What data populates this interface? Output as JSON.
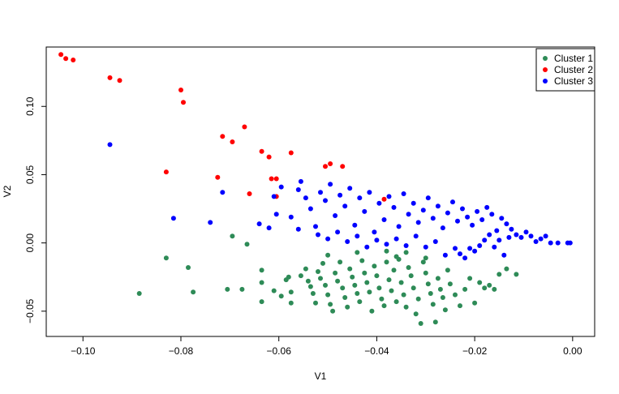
{
  "chart_data": {
    "type": "scatter",
    "title": "",
    "xlabel": "V1",
    "ylabel": "V2",
    "xlim": [
      -0.1075,
      0.0045
    ],
    "ylim": [
      -0.0685,
      0.1435
    ],
    "x_ticks": [
      -0.1,
      -0.08,
      -0.06,
      -0.04,
      -0.02,
      0.0
    ],
    "x_tick_labels": [
      "−0.10",
      "−0.08",
      "−0.06",
      "−0.04",
      "−0.02",
      "0.00"
    ],
    "y_ticks": [
      -0.05,
      0.0,
      0.05,
      0.1
    ],
    "y_tick_labels": [
      "−0.05",
      "0.00",
      "0.05",
      "0.10"
    ],
    "grid": false,
    "legend_position": "top-right",
    "series": [
      {
        "name": "Cluster 1",
        "color": "#2E8B57",
        "points": [
          [
            -0.0885,
            -0.037
          ],
          [
            -0.083,
            -0.011
          ],
          [
            -0.0785,
            -0.018
          ],
          [
            -0.0775,
            -0.036
          ],
          [
            -0.0705,
            -0.034
          ],
          [
            -0.0695,
            0.005
          ],
          [
            -0.0675,
            -0.034
          ],
          [
            -0.0665,
            -0.001
          ],
          [
            -0.0635,
            -0.02
          ],
          [
            -0.0635,
            -0.029
          ],
          [
            -0.0635,
            -0.043
          ],
          [
            -0.061,
            -0.035
          ],
          [
            -0.0595,
            -0.039
          ],
          [
            -0.0585,
            -0.027
          ],
          [
            -0.058,
            -0.025
          ],
          [
            -0.0575,
            -0.036
          ],
          [
            -0.0575,
            -0.044
          ],
          [
            -0.0555,
            -0.024
          ],
          [
            -0.0545,
            -0.019
          ],
          [
            -0.054,
            -0.028
          ],
          [
            -0.0535,
            -0.032
          ],
          [
            -0.053,
            -0.037
          ],
          [
            -0.0525,
            -0.044
          ],
          [
            -0.052,
            -0.021
          ],
          [
            -0.0515,
            -0.026
          ],
          [
            -0.051,
            -0.015
          ],
          [
            -0.0505,
            -0.031
          ],
          [
            -0.05,
            -0.038
          ],
          [
            -0.0495,
            -0.045
          ],
          [
            -0.049,
            -0.05
          ],
          [
            -0.0485,
            -0.022
          ],
          [
            -0.048,
            -0.028
          ],
          [
            -0.0475,
            -0.014
          ],
          [
            -0.047,
            -0.033
          ],
          [
            -0.0465,
            -0.04
          ],
          [
            -0.046,
            -0.047
          ],
          [
            -0.0455,
            -0.019
          ],
          [
            -0.045,
            -0.025
          ],
          [
            -0.0445,
            -0.031
          ],
          [
            -0.044,
            -0.037
          ],
          [
            -0.0435,
            -0.043
          ],
          [
            -0.043,
            -0.013
          ],
          [
            -0.0425,
            -0.022
          ],
          [
            -0.042,
            -0.029
          ],
          [
            -0.0415,
            -0.036
          ],
          [
            -0.041,
            -0.05
          ],
          [
            -0.0405,
            -0.017
          ],
          [
            -0.04,
            -0.024
          ],
          [
            -0.0395,
            -0.033
          ],
          [
            -0.039,
            -0.041
          ],
          [
            -0.0385,
            -0.046
          ],
          [
            -0.038,
            -0.014
          ],
          [
            -0.0375,
            -0.027
          ],
          [
            -0.037,
            -0.035
          ],
          [
            -0.0365,
            -0.02
          ],
          [
            -0.036,
            -0.043
          ],
          [
            -0.0355,
            -0.012
          ],
          [
            -0.035,
            -0.029
          ],
          [
            -0.0345,
            -0.038
          ],
          [
            -0.034,
            -0.047
          ],
          [
            -0.0335,
            -0.018
          ],
          [
            -0.033,
            -0.024
          ],
          [
            -0.0325,
            -0.033
          ],
          [
            -0.032,
            -0.052
          ],
          [
            -0.0315,
            -0.041
          ],
          [
            -0.031,
            -0.059
          ],
          [
            -0.0305,
            -0.014
          ],
          [
            -0.03,
            -0.022
          ],
          [
            -0.0295,
            -0.03
          ],
          [
            -0.029,
            -0.037
          ],
          [
            -0.0285,
            -0.045
          ],
          [
            -0.028,
            -0.058
          ],
          [
            -0.0275,
            -0.026
          ],
          [
            -0.027,
            -0.034
          ],
          [
            -0.0265,
            -0.04
          ],
          [
            -0.026,
            -0.049
          ],
          [
            -0.0255,
            -0.02
          ],
          [
            -0.025,
            -0.03
          ],
          [
            -0.024,
            -0.038
          ],
          [
            -0.023,
            -0.046
          ],
          [
            -0.022,
            -0.034
          ],
          [
            -0.021,
            -0.026
          ],
          [
            -0.02,
            -0.044
          ],
          [
            -0.019,
            -0.029
          ],
          [
            -0.018,
            -0.033
          ],
          [
            -0.017,
            -0.031
          ],
          [
            -0.016,
            -0.034
          ],
          [
            -0.015,
            -0.023
          ],
          [
            -0.0135,
            -0.019
          ],
          [
            -0.0115,
            -0.023
          ],
          [
            -0.038,
            -0.006
          ],
          [
            -0.036,
            -0.01
          ],
          [
            -0.034,
            -0.007
          ],
          [
            -0.03,
            -0.011
          ],
          [
            -0.05,
            -0.009
          ],
          [
            -0.044,
            -0.007
          ]
        ]
      },
      {
        "name": "Cluster 2",
        "color": "#FF0000",
        "points": [
          [
            -0.1045,
            0.138
          ],
          [
            -0.1035,
            0.135
          ],
          [
            -0.102,
            0.134
          ],
          [
            -0.0945,
            0.121
          ],
          [
            -0.0925,
            0.119
          ],
          [
            -0.08,
            0.112
          ],
          [
            -0.0795,
            0.103
          ],
          [
            -0.0715,
            0.078
          ],
          [
            -0.0695,
            0.074
          ],
          [
            -0.067,
            0.085
          ],
          [
            -0.0635,
            0.067
          ],
          [
            -0.062,
            0.063
          ],
          [
            -0.0575,
            0.066
          ],
          [
            -0.0605,
            0.047
          ],
          [
            -0.0615,
            0.047
          ],
          [
            -0.0605,
            0.034
          ],
          [
            -0.0505,
            0.056
          ],
          [
            -0.0495,
            0.058
          ],
          [
            -0.047,
            0.056
          ],
          [
            -0.0725,
            0.048
          ],
          [
            -0.066,
            0.036
          ],
          [
            -0.083,
            0.052
          ],
          [
            -0.0385,
            0.032
          ]
        ]
      },
      {
        "name": "Cluster 3",
        "color": "#0000FF",
        "points": [
          [
            -0.0945,
            0.072
          ],
          [
            -0.0815,
            0.018
          ],
          [
            -0.074,
            0.015
          ],
          [
            -0.0715,
            0.037
          ],
          [
            -0.061,
            0.034
          ],
          [
            -0.0605,
            0.021
          ],
          [
            -0.0595,
            0.041
          ],
          [
            -0.0575,
            0.019
          ],
          [
            -0.056,
            0.039
          ],
          [
            -0.0555,
            0.045
          ],
          [
            -0.0545,
            0.033
          ],
          [
            -0.0535,
            0.025
          ],
          [
            -0.0525,
            0.012
          ],
          [
            -0.0515,
            0.037
          ],
          [
            -0.0505,
            0.031
          ],
          [
            -0.0495,
            0.043
          ],
          [
            -0.0485,
            0.02
          ],
          [
            -0.0475,
            0.035
          ],
          [
            -0.0465,
            0.027
          ],
          [
            -0.0455,
            0.04
          ],
          [
            -0.0445,
            0.013
          ],
          [
            -0.0435,
            0.033
          ],
          [
            -0.0425,
            0.023
          ],
          [
            -0.0415,
            0.037
          ],
          [
            -0.0405,
            0.008
          ],
          [
            -0.0395,
            0.029
          ],
          [
            -0.0385,
            0.017
          ],
          [
            -0.0375,
            0.034
          ],
          [
            -0.0365,
            0.026
          ],
          [
            -0.0355,
            0.012
          ],
          [
            -0.0345,
            0.036
          ],
          [
            -0.0335,
            0.021
          ],
          [
            -0.0325,
            0.029
          ],
          [
            -0.0315,
            0.015
          ],
          [
            -0.0305,
            0.024
          ],
          [
            -0.0295,
            0.033
          ],
          [
            -0.0285,
            0.018
          ],
          [
            -0.0275,
            0.027
          ],
          [
            -0.0265,
            0.011
          ],
          [
            -0.0255,
            0.022
          ],
          [
            -0.0245,
            0.03
          ],
          [
            -0.0235,
            0.016
          ],
          [
            -0.0225,
            0.025
          ],
          [
            -0.0215,
            0.019
          ],
          [
            -0.0205,
            0.013
          ],
          [
            -0.0195,
            0.023
          ],
          [
            -0.0185,
            0.017
          ],
          [
            -0.0175,
            0.026
          ],
          [
            -0.0165,
            0.021
          ],
          [
            -0.0155,
            0.009
          ],
          [
            -0.0145,
            0.018
          ],
          [
            -0.0135,
            0.014
          ],
          [
            -0.0125,
            0.01
          ],
          [
            -0.0115,
            0.006
          ],
          [
            -0.0105,
            0.004
          ],
          [
            -0.0095,
            0.008
          ],
          [
            -0.0085,
            0.005
          ],
          [
            -0.0075,
            0.001
          ],
          [
            -0.0065,
            0.003
          ],
          [
            -0.0055,
            0.005
          ],
          [
            -0.0045,
            0.0
          ],
          [
            -0.003,
            0.0
          ],
          [
            -0.001,
            0.0
          ],
          [
            -0.0005,
            0.0
          ],
          [
            -0.014,
            -0.009
          ],
          [
            -0.016,
            -0.003
          ],
          [
            -0.018,
            0.002
          ],
          [
            -0.02,
            -0.006
          ],
          [
            -0.022,
            -0.011
          ],
          [
            -0.024,
            -0.004
          ],
          [
            -0.026,
            -0.009
          ],
          [
            -0.028,
            0.001
          ],
          [
            -0.03,
            -0.003
          ],
          [
            -0.032,
            0.005
          ],
          [
            -0.034,
            -0.002
          ],
          [
            -0.036,
            0.003
          ],
          [
            -0.038,
            -0.001
          ],
          [
            -0.04,
            0.002
          ],
          [
            -0.042,
            -0.003
          ],
          [
            -0.044,
            0.005
          ],
          [
            -0.046,
            0.001
          ],
          [
            -0.048,
            0.008
          ],
          [
            -0.05,
            0.003
          ],
          [
            -0.052,
            0.006
          ],
          [
            -0.056,
            0.01
          ],
          [
            -0.062,
            0.011
          ],
          [
            -0.064,
            0.014
          ],
          [
            -0.023,
            -0.008
          ],
          [
            -0.021,
            -0.004
          ],
          [
            -0.019,
            -0.002
          ],
          [
            -0.017,
            0.006
          ],
          [
            -0.015,
            0.002
          ],
          [
            -0.013,
            0.004
          ]
        ]
      }
    ]
  }
}
